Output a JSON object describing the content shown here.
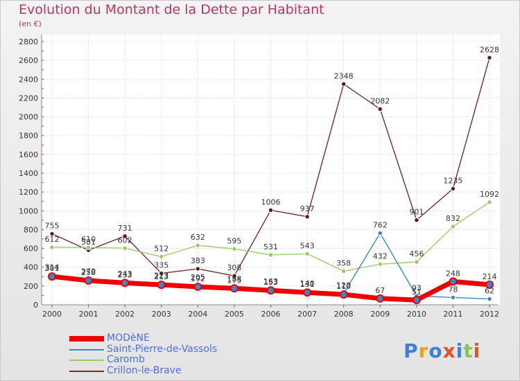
{
  "title": "Evolution du Montant de la Dette par Habitant",
  "subtitle": "(en €)",
  "logo": {
    "text": "Proxiti",
    "colors": [
      "#3b7fd9",
      "#e8a020",
      "#3b7fd9",
      "#e8501c",
      "#3b7fd9",
      "#8bc34a",
      "#e8501c"
    ]
  },
  "chart_data": {
    "type": "line",
    "title": "Evolution du Montant de la Dette par Habitant",
    "subtitle": "(en €)",
    "x": [
      "2000",
      "2001",
      "2002",
      "2003",
      "2004",
      "2005",
      "2006",
      "2007",
      "2008",
      "2009",
      "2010",
      "2011",
      "2012"
    ],
    "ylim": [
      0,
      2800
    ],
    "yticks": [
      "0",
      "200",
      "400",
      "600",
      "800",
      "1000",
      "1200",
      "1400",
      "1600",
      "1800",
      "2000",
      "2200",
      "2400",
      "2600",
      "2800"
    ],
    "grid": true,
    "legend_position": "bottom-left",
    "series": [
      {
        "name": "MODèNE",
        "color": "#ee0000",
        "values": [
          301,
          258,
          233,
          213,
          192,
          175,
          153,
          131,
          110,
          67,
          51,
          248,
          214
        ],
        "labels": [
          "301",
          "258",
          "233",
          "213",
          "192",
          "175",
          "153",
          "131",
          "110",
          "67",
          "51",
          "248",
          "214"
        ]
      },
      {
        "name": "Saint-Pierre-de-Vassols",
        "color": "#3d86c6",
        "values": [
          314,
          270,
          243,
          223,
          205,
          188,
          163,
          140,
          120,
          762,
          93,
          78,
          62
        ],
        "labels": [
          "314",
          "270",
          "243",
          "223",
          "205",
          "188",
          "163",
          "140",
          "120",
          "762",
          "93",
          "78",
          "62"
        ]
      },
      {
        "name": "Caromb",
        "color": "#99cc66",
        "values": [
          612,
          610,
          602,
          512,
          632,
          595,
          531,
          543,
          358,
          432,
          456,
          832,
          1092
        ],
        "labels": [
          "612",
          "610",
          "602",
          "512",
          "632",
          "595",
          "531",
          "543",
          "358",
          "432",
          "456",
          "832",
          "1092"
        ]
      },
      {
        "name": "Crillon-le-Brave",
        "color": "#7a2a2a",
        "values": [
          755,
          581,
          731,
          335,
          383,
          308,
          1006,
          937,
          2348,
          2082,
          901,
          1235,
          2628
        ],
        "labels": [
          "755",
          "581",
          "731",
          "335",
          "383",
          "308",
          "1006",
          "937",
          "2348",
          "2082",
          "901",
          "1235",
          "2628"
        ]
      }
    ]
  }
}
